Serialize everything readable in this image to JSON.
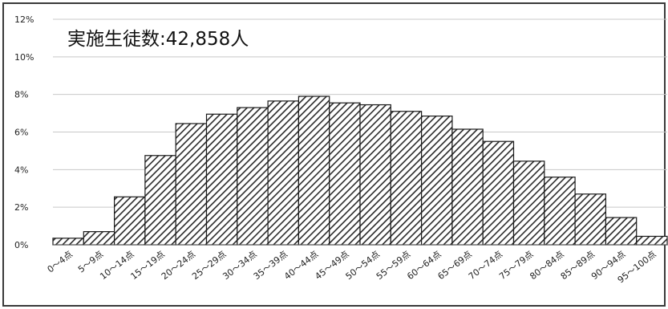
{
  "chart_data": {
    "type": "bar",
    "title": "実施生徒数:42,858人",
    "xlabel": "",
    "ylabel": "",
    "ylim": [
      0,
      12
    ],
    "y_ticks": [
      "0%",
      "2%",
      "4%",
      "6%",
      "8%",
      "10%",
      "12%"
    ],
    "categories": [
      "0～4点",
      "5～9点",
      "10～14点",
      "15～19点",
      "20～24点",
      "25～29点",
      "30～34点",
      "35～39点",
      "40～44点",
      "45～49点",
      "50～54点",
      "55～59点",
      "60～64点",
      "65～69点",
      "70～74点",
      "75～79点",
      "80～84点",
      "85～89点",
      "90～94点",
      "95～100点"
    ],
    "values": [
      0.35,
      0.7,
      2.55,
      4.75,
      6.45,
      6.95,
      7.3,
      7.65,
      7.9,
      7.55,
      7.45,
      7.1,
      6.85,
      6.15,
      5.5,
      4.45,
      3.6,
      2.7,
      1.45,
      0.45
    ],
    "grid": true,
    "legend": "none",
    "bar_fill": "diagonal-hatch",
    "colors": {
      "bar_stroke": "#1a1a1a",
      "hatch": "#2a2a2a",
      "grid": "#c8c8c8",
      "frame": "#3a3a3a"
    }
  }
}
